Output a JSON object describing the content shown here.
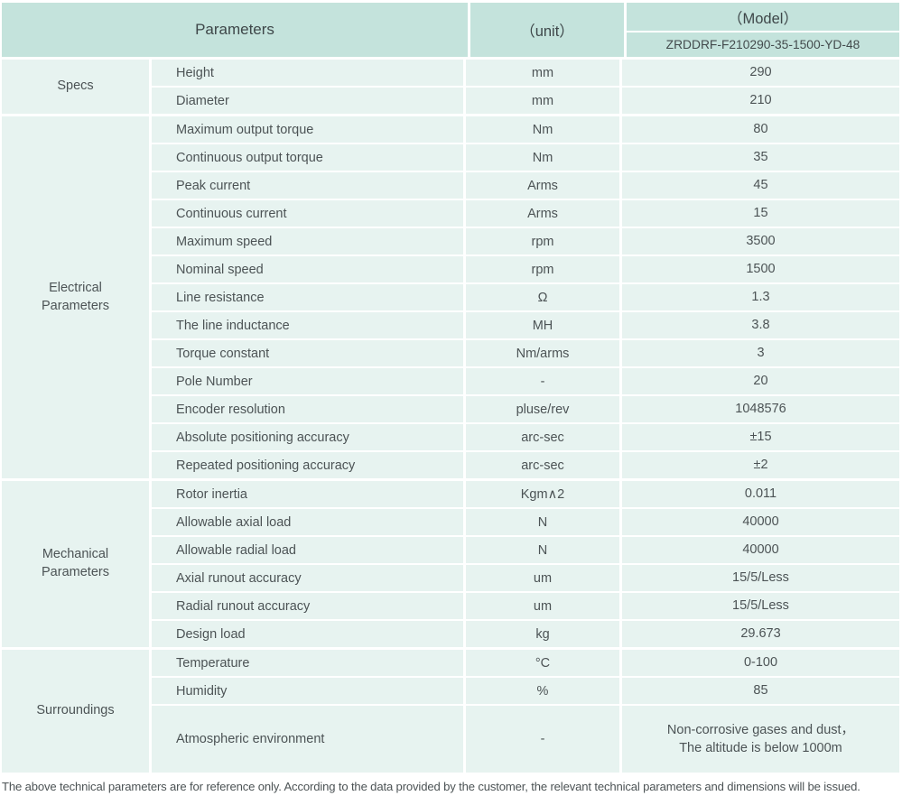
{
  "colors": {
    "header_bg": "#c4e3dc",
    "row_bg": "#e7f3f0",
    "divider": "#ffffff",
    "text": "#4c5355"
  },
  "table": {
    "header": {
      "parameters_label": "Parameters",
      "unit_label": "（unit）",
      "model_label": "（Model）",
      "model_value": "ZRDDRF-F210290-35-1500-YD-48"
    },
    "sections": [
      {
        "label": "Specs",
        "rows": [
          {
            "param": "Height",
            "unit": "mm",
            "value": "290"
          },
          {
            "param": "Diameter",
            "unit": "mm",
            "value": "210"
          }
        ]
      },
      {
        "label": "Electrical\nParameters",
        "rows": [
          {
            "param": "Maximum output torque",
            "unit": "Nm",
            "value": "80"
          },
          {
            "param": "Continuous output torque",
            "unit": "Nm",
            "value": "35"
          },
          {
            "param": "Peak current",
            "unit": "Arms",
            "value": "45"
          },
          {
            "param": "Continuous current",
            "unit": "Arms",
            "value": "15"
          },
          {
            "param": "Maximum speed",
            "unit": "rpm",
            "value": "3500"
          },
          {
            "param": "Nominal speed",
            "unit": "rpm",
            "value": "1500"
          },
          {
            "param": "Line resistance",
            "unit": "Ω",
            "value": "1.3"
          },
          {
            "param": "The line inductance",
            "unit": "MH",
            "value": "3.8"
          },
          {
            "param": "Torque constant",
            "unit": "Nm/arms",
            "value": "3"
          },
          {
            "param": "Pole Number",
            "unit": "-",
            "value": "20"
          },
          {
            "param": "Encoder resolution",
            "unit": "pluse/rev",
            "value": "1048576"
          },
          {
            "param": "Absolute positioning accuracy",
            "unit": "arc-sec",
            "value": "±15"
          },
          {
            "param": "Repeated positioning accuracy",
            "unit": "arc-sec",
            "value": "±2"
          }
        ]
      },
      {
        "label": "Mechanical\nParameters",
        "rows": [
          {
            "param": "Rotor inertia",
            "unit": "Kgm∧2",
            "value": "0.011"
          },
          {
            "param": "Allowable axial load",
            "unit": "N",
            "value": "40000"
          },
          {
            "param": "Allowable radial load",
            "unit": "N",
            "value": "40000"
          },
          {
            "param": "Axial runout accuracy",
            "unit": "um",
            "value": "15/5/Less"
          },
          {
            "param": "Radial runout accuracy",
            "unit": "um",
            "value": "15/5/Less"
          },
          {
            "param": "Design load",
            "unit": "kg",
            "value": "29.673"
          }
        ]
      },
      {
        "label": "Surroundings",
        "rows": [
          {
            "param": "Temperature",
            "unit": "°C",
            "value": "0-100"
          },
          {
            "param": "Humidity",
            "unit": "%",
            "value": "85"
          },
          {
            "param": "Atmospheric environment",
            "unit": "-",
            "value": "Non-corrosive gases and dust，\nThe altitude is below 1000m"
          }
        ]
      }
    ],
    "footer_note": "The above technical parameters are for reference only. According to the data provided by the customer, the relevant technical parameters and dimensions will be issued."
  }
}
